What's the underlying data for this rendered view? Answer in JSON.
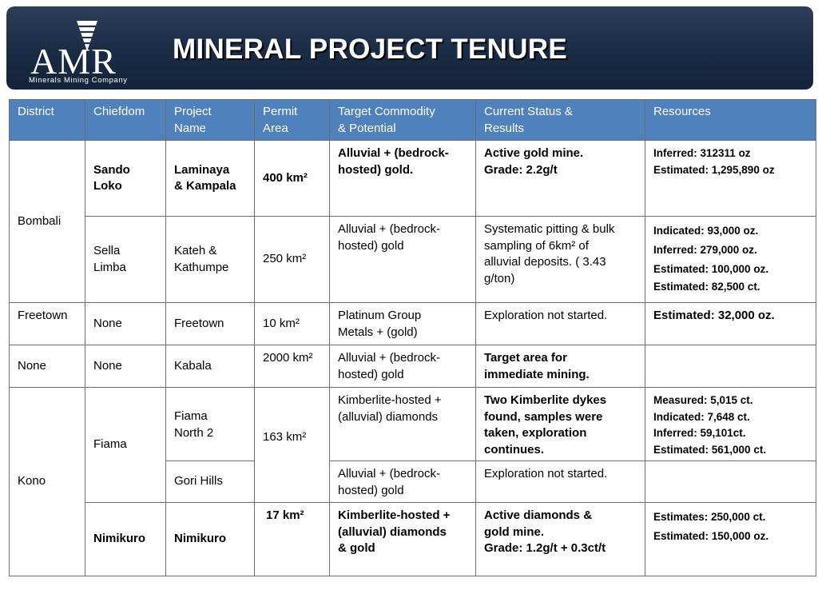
{
  "logo": {
    "text": "AMR",
    "subtitle": "Minerals Mining Company"
  },
  "title": "MINERAL PROJECT TENURE",
  "table": {
    "headers": [
      [
        "District"
      ],
      [
        "Chiefdom"
      ],
      [
        "Project",
        "Name"
      ],
      [
        "Permit",
        "Area"
      ],
      [
        "Target Commodity",
        "& Potential"
      ],
      [
        "Current Status &",
        "Results"
      ],
      [
        "Resources"
      ]
    ],
    "rows": [
      {
        "district": "Bombali",
        "chiefdom": [
          "Sando",
          "Loko"
        ],
        "project": [
          "Laminaya",
          "& Kampala"
        ],
        "area": "400 km²",
        "target": [
          "Alluvial + (bedrock-",
          "hosted) gold."
        ],
        "status": [
          "Active gold mine.",
          "Grade: 2.2g/t"
        ],
        "resources": [
          "Inferred: 312311 oz",
          "Estimated: 1,295,890 oz"
        ]
      },
      {
        "chiefdom": [
          "Sella",
          "Limba"
        ],
        "project": [
          "Kateh &",
          "Kathumpe"
        ],
        "area": "250 km²",
        "target": [
          "Alluvial + (bedrock-",
          "hosted) gold"
        ],
        "status": [
          "Systematic pitting & bulk",
          "sampling of 6km² of",
          "alluvial deposits. ( 3.43",
          "g/ton)"
        ],
        "resources": [
          "Indicated: 93,000 oz.",
          "Inferred: 279,000 oz.",
          "Estimated: 100,000 oz.",
          "Estimated:  82,500 ct."
        ]
      },
      {
        "district": "Freetown",
        "chiefdom": "None",
        "project": "Freetown",
        "area": "10 km²",
        "target": [
          "Platinum Group",
          "Metals + (gold)"
        ],
        "status": [
          "Exploration not started."
        ],
        "resources": [
          "Estimated: 32,000 oz."
        ]
      },
      {
        "district": "None",
        "chiefdom": "None",
        "project": "Kabala",
        "area": "2000 km²",
        "target": [
          "Alluvial + (bedrock-",
          "hosted) gold"
        ],
        "status": [
          "Target area for",
          "immediate mining."
        ],
        "resources": []
      },
      {
        "district": "Kono",
        "chiefdom": "Fiama",
        "project": [
          "Fiama",
          "North 2"
        ],
        "area": "163 km²",
        "target": [
          "Kimberlite-hosted +",
          "(alluvial) diamonds"
        ],
        "status": [
          "Two Kimberlite dykes",
          "found, samples were",
          "taken, exploration",
          "continues."
        ],
        "resources": [
          "Measured: 5,015 ct.",
          "Indicated:   7,648 ct.",
          "Inferred: 59,101ct.",
          "Estimated: 561,000 ct."
        ]
      },
      {
        "project": "Gori Hills",
        "target": [
          "Alluvial + (bedrock-",
          "hosted) gold"
        ],
        "status": [
          "Exploration not started."
        ],
        "resources": []
      },
      {
        "chiefdom": "Nimikuro",
        "project": "Nimikuro",
        "area": "17 km²",
        "target": [
          "Kimberlite-hosted +",
          "(alluvial) diamonds",
          "& gold"
        ],
        "status": [
          "Active diamonds &",
          "gold mine.",
          "Grade: 1.2g/t + 0.3ct/t"
        ],
        "resources": [
          "Estimates: 250,000 ct.",
          "Estimated: 150,000 oz."
        ]
      }
    ]
  }
}
